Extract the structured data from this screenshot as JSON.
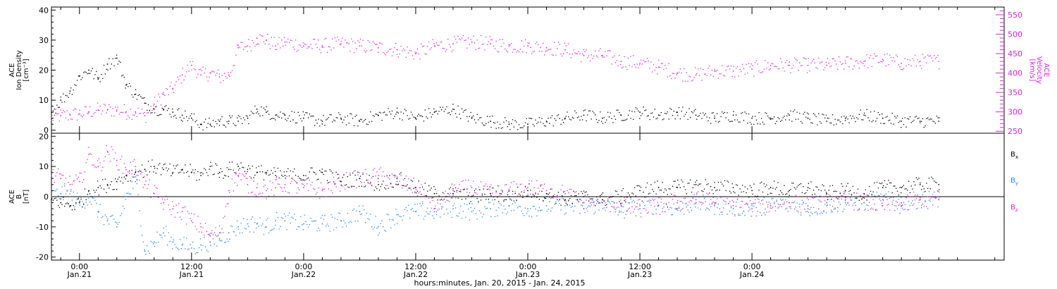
{
  "colors": {
    "black": "#000000",
    "magenta": "#e020e0",
    "blue": "#1e88e5"
  },
  "chart_data": [
    {
      "type": "scatter",
      "panel": "top",
      "xlim_hours": [
        -3,
        99
      ],
      "left_axis": {
        "label_lines": [
          "ACE",
          "Ion Density",
          "[cm⁻³]"
        ],
        "ylim": [
          -1,
          41
        ],
        "ticks": [
          0,
          10,
          20,
          30,
          40
        ],
        "color": "#000000"
      },
      "right_axis": {
        "label_lines": [
          "ACE",
          "Velocity",
          "[km/s]"
        ],
        "ylim": [
          245,
          570
        ],
        "ticks": [
          250,
          300,
          350,
          400,
          450,
          500,
          550
        ],
        "color": "#e020e0"
      },
      "series": [
        {
          "axis": "left",
          "color": "#000000",
          "x": [
            -3,
            -2,
            -1,
            0,
            1,
            2,
            3,
            4,
            5,
            6,
            7,
            8,
            9,
            10,
            11,
            12,
            13,
            14,
            15,
            16,
            17,
            18,
            19,
            20,
            21,
            22,
            24,
            26,
            28,
            30,
            32,
            34,
            36,
            38,
            40,
            42,
            44,
            46,
            48,
            50,
            52,
            54,
            56,
            58,
            60,
            62,
            64,
            66,
            68,
            70,
            72,
            74,
            76,
            78,
            80,
            82,
            84,
            86,
            88,
            90,
            92
          ],
          "y": [
            6,
            10,
            13,
            18,
            20,
            17,
            22,
            24,
            15,
            12,
            9,
            7,
            7,
            6,
            5,
            4,
            2,
            2,
            3,
            3,
            3,
            4,
            7,
            6,
            5,
            5,
            4,
            3,
            4,
            3,
            5,
            6,
            4,
            6,
            7,
            4,
            3,
            2,
            2,
            3,
            4,
            5,
            4,
            5,
            6,
            5,
            6,
            5,
            4,
            5,
            4,
            4,
            5,
            4,
            3,
            4,
            5,
            4,
            3,
            3,
            3
          ]
        },
        {
          "axis": "right",
          "color": "#e020e0",
          "x": [
            -3,
            -2,
            -1,
            0,
            1,
            2,
            3,
            4,
            5,
            6,
            7,
            8,
            9,
            10,
            11,
            12,
            13,
            14,
            15,
            16,
            17,
            18,
            19,
            20,
            21,
            22,
            24,
            26,
            28,
            30,
            32,
            34,
            36,
            38,
            40,
            42,
            44,
            46,
            48,
            50,
            52,
            54,
            56,
            58,
            60,
            62,
            64,
            66,
            68,
            70,
            72,
            74,
            76,
            78,
            80,
            82,
            84,
            86,
            88,
            90,
            92
          ],
          "y": [
            285,
            290,
            292,
            295,
            300,
            305,
            305,
            305,
            300,
            300,
            290,
            320,
            345,
            360,
            395,
            420,
            395,
            400,
            390,
            395,
            465,
            470,
            490,
            485,
            470,
            480,
            470,
            470,
            475,
            470,
            465,
            460,
            450,
            470,
            475,
            480,
            475,
            470,
            470,
            465,
            460,
            445,
            445,
            430,
            425,
            415,
            400,
            395,
            405,
            405,
            410,
            420,
            420,
            420,
            420,
            425,
            430,
            435,
            425,
            430,
            430
          ]
        }
      ]
    },
    {
      "type": "scatter",
      "panel": "bottom",
      "xlim_hours": [
        -3,
        99
      ],
      "left_axis": {
        "label_lines": [
          "ACE",
          "B",
          "[nT]"
        ],
        "ylim": [
          -21,
          21
        ],
        "ticks": [
          -20,
          -10,
          0,
          10,
          20
        ],
        "color": "#000000"
      },
      "zero_line": true,
      "series": [
        {
          "name": "Bx",
          "color": "#000000",
          "x": [
            -3,
            -2,
            -1,
            0,
            1,
            2,
            3,
            4,
            5,
            6,
            7,
            8,
            9,
            10,
            11,
            12,
            13,
            14,
            15,
            16,
            17,
            18,
            19,
            20,
            21,
            22,
            24,
            26,
            28,
            30,
            32,
            34,
            36,
            38,
            40,
            42,
            44,
            46,
            48,
            50,
            52,
            54,
            56,
            58,
            60,
            62,
            64,
            66,
            68,
            70,
            72,
            74,
            76,
            78,
            80,
            82,
            84,
            86,
            88,
            90,
            92
          ],
          "y": [
            -1,
            -2,
            -3,
            -2,
            2,
            3,
            4,
            5,
            7,
            8,
            9,
            10,
            9,
            8,
            9,
            8,
            7,
            10,
            8,
            9,
            10,
            9,
            8,
            8,
            7,
            7,
            7,
            8,
            5,
            6,
            4,
            6,
            3,
            1,
            1,
            0,
            1,
            0,
            2,
            1,
            -1,
            0,
            -1,
            0,
            2,
            3,
            3,
            4,
            3,
            3,
            2,
            3,
            2,
            3,
            1,
            2,
            1,
            3,
            3,
            4,
            4
          ]
        },
        {
          "name": "By",
          "color": "#1e88e5",
          "x": [
            -3,
            -2,
            -1,
            0,
            1,
            2,
            3,
            4,
            5,
            6,
            7,
            8,
            9,
            10,
            11,
            12,
            13,
            14,
            15,
            16,
            17,
            18,
            19,
            20,
            21,
            22,
            24,
            26,
            28,
            30,
            32,
            34,
            36,
            38,
            40,
            42,
            44,
            46,
            48,
            50,
            52,
            54,
            56,
            58,
            60,
            62,
            64,
            66,
            68,
            70,
            72,
            74,
            76,
            78,
            80,
            82,
            84,
            86,
            88,
            90,
            92
          ],
          "y": [
            0,
            1,
            0,
            -2,
            0,
            -5,
            -8,
            -10,
            0,
            5,
            -18,
            -15,
            -12,
            -15,
            -16,
            -17,
            -16,
            -15,
            -14,
            -12,
            -10,
            -9,
            -9,
            -10,
            -8,
            -8,
            -9,
            -9,
            -8,
            -5,
            -10,
            -6,
            -5,
            -5,
            -4,
            -5,
            -4,
            -3,
            -4,
            -3,
            -3,
            -4,
            -2,
            -5,
            -3,
            -3,
            -4,
            -2,
            -3,
            -4,
            -3,
            -3,
            -2,
            -4,
            -3,
            -2,
            -2,
            -1,
            -2,
            -1,
            -1
          ]
        },
        {
          "name": "Bz",
          "color": "#e020e0",
          "x": [
            -3,
            -2,
            -1,
            0,
            1,
            2,
            3,
            4,
            5,
            6,
            7,
            8,
            9,
            10,
            11,
            12,
            13,
            14,
            15,
            16,
            17,
            18,
            19,
            20,
            21,
            22,
            24,
            26,
            28,
            30,
            32,
            34,
            36,
            38,
            40,
            42,
            44,
            46,
            48,
            50,
            52,
            54,
            56,
            58,
            60,
            62,
            64,
            66,
            68,
            70,
            72,
            74,
            76,
            78,
            80,
            82,
            84,
            86,
            88,
            90,
            92
          ],
          "y": [
            7,
            6,
            4,
            5,
            14,
            10,
            15,
            12,
            9,
            10,
            4,
            1,
            -2,
            -4,
            -5,
            -8,
            -10,
            -13,
            -12,
            2,
            7,
            4,
            3,
            2,
            3,
            4,
            3,
            2,
            5,
            6,
            7,
            5,
            3,
            -4,
            2,
            3,
            1,
            2,
            3,
            2,
            1,
            -2,
            -2,
            -3,
            -4,
            -3,
            -2,
            -1,
            -2,
            -3,
            -4,
            -3,
            -2,
            -3,
            -2,
            -1,
            -2,
            -3,
            -3,
            -1,
            -1
          ]
        }
      ],
      "legend": [
        "B",
        "B",
        "B"
      ],
      "legend_subscripts": [
        "x",
        "y",
        "z"
      ]
    }
  ],
  "x_axis": {
    "ticks": [
      {
        "hours": 0,
        "time": "0:00",
        "date": "Jan.21"
      },
      {
        "hours": 12,
        "time": "12:00",
        "date": "Jan.21"
      },
      {
        "hours": 24,
        "time": "0:00",
        "date": "Jan.22"
      },
      {
        "hours": 36,
        "time": "12:00",
        "date": "Jan.22"
      },
      {
        "hours": 48,
        "time": "0:00",
        "date": "Jan.23"
      },
      {
        "hours": 60,
        "time": "12:00",
        "date": "Jan.23"
      },
      {
        "hours": 72,
        "time": "0:00",
        "date": "Jan.24"
      }
    ],
    "title": "hours:minutes, Jan. 20, 2015 - Jan. 24, 2015"
  }
}
